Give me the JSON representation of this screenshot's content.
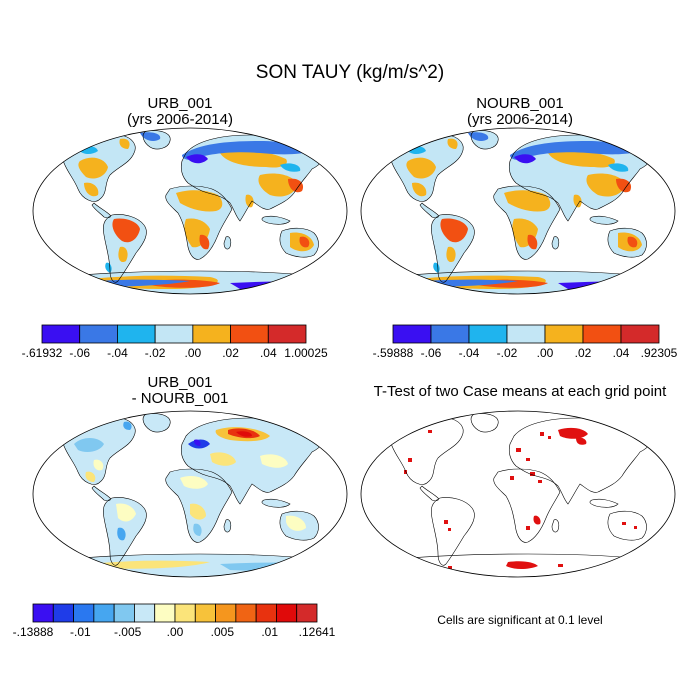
{
  "figure": {
    "title": "SON TAUY (kg/m/s^2)"
  },
  "panels": {
    "urb": {
      "title_line1": "URB_001",
      "title_line2": "(yrs 2006-2014)",
      "colorbar": {
        "colors": [
          "#3a0ff2",
          "#3a78e6",
          "#1fb4ee",
          "#c3e6f5",
          "#f5b21e",
          "#f25012",
          "#d42a2a"
        ],
        "tick_labels": [
          "-.61932",
          "-.06",
          "-.04",
          "-.02",
          ".00",
          ".02",
          ".04",
          "1.00025"
        ]
      }
    },
    "nourb": {
      "title_line1": "NOURB_001",
      "title_line2": "(yrs 2006-2014)",
      "colorbar": {
        "colors": [
          "#3a0ff2",
          "#3a78e6",
          "#1fb4ee",
          "#c3e6f5",
          "#f5b21e",
          "#f25012",
          "#d42a2a"
        ],
        "tick_labels": [
          "-.59888",
          "-.06",
          "-.04",
          "-.02",
          ".00",
          ".02",
          ".04",
          ".92305"
        ]
      }
    },
    "diff": {
      "title_line1": "URB_001",
      "title_line2": "- NOURB_001",
      "colorbar": {
        "colors": [
          "#3a0ff2",
          "#1f3ce8",
          "#2a78f0",
          "#46a6f0",
          "#80c8f0",
          "#c8e8f7",
          "#fdfdc2",
          "#fbe47a",
          "#f7c23a",
          "#f5961e",
          "#f06414",
          "#e8320f",
          "#e00a0a",
          "#d42a2a"
        ],
        "tick_labels": [
          "-.13888",
          "-.01",
          "-.005",
          ".00",
          ".005",
          ".01",
          ".12641"
        ]
      }
    },
    "ttest": {
      "title": "T-Test of two Case means at each grid point",
      "note": "Cells are significant at 0.1 level",
      "sig_color": "#e01010"
    }
  }
}
